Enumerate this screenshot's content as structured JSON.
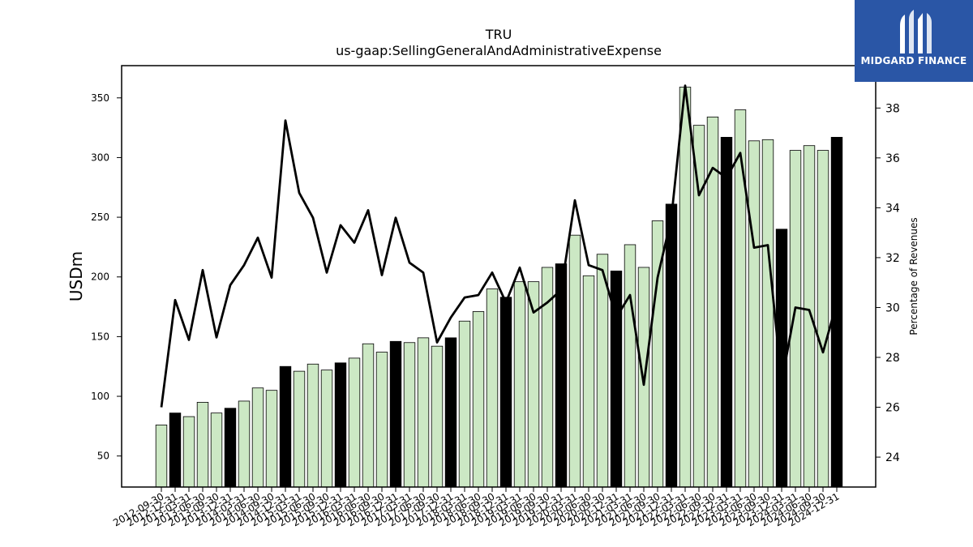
{
  "logo": {
    "name": "MIDGARD FINANCE",
    "icon": "midgard-m-logo-icon"
  },
  "chart_data": {
    "type": "bar",
    "title": "TRU",
    "subtitle": "us-gaap:SellingGeneralAndAdministrativeExpense",
    "ylabel": "USDm",
    "y2label": "Percentage of Revenues",
    "ylim": [
      24,
      377
    ],
    "y2lim": [
      22.8,
      39.7
    ],
    "yticks": [
      50,
      100,
      150,
      200,
      250,
      300,
      350
    ],
    "y2ticks": [
      24,
      26,
      28,
      30,
      32,
      34,
      36,
      38
    ],
    "colors": {
      "quarter_bar": "#cce8c4",
      "annual_bar": "#000000",
      "line": "#000000",
      "edge": "#000000"
    },
    "categories": [
      "2012-09-30",
      "2012-12-31",
      "2013-03-31",
      "2013-06-30",
      "2013-09-30",
      "2013-12-31",
      "2014-03-31",
      "2014-06-30",
      "2014-09-30",
      "2014-12-31",
      "2015-03-31",
      "2015-06-30",
      "2015-09-30",
      "2015-12-31",
      "2016-03-31",
      "2016-06-30",
      "2016-09-30",
      "2016-12-31",
      "2017-03-31",
      "2017-06-30",
      "2017-09-30",
      "2017-12-31",
      "2018-03-31",
      "2018-06-30",
      "2018-09-30",
      "2018-12-31",
      "2019-03-31",
      "2019-06-30",
      "2019-09-30",
      "2019-12-31",
      "2020-03-31",
      "2020-06-30",
      "2020-09-30",
      "2020-12-31",
      "2021-03-31",
      "2021-06-30",
      "2021-09-30",
      "2021-12-31",
      "2022-03-31",
      "2022-06-30",
      "2022-09-30",
      "2022-12-31",
      "2023-03-31",
      "2023-06-30",
      "2023-09-30",
      "2023-12-31",
      "2024-03-31",
      "2024-06-30",
      "2024-09-30",
      "2024-12-31"
    ],
    "series": [
      {
        "kind": "bar",
        "axis": "left",
        "values": [
          76,
          86,
          83,
          95,
          86,
          90,
          96,
          107,
          105,
          125,
          121,
          127,
          122,
          128,
          132,
          144,
          137,
          146,
          145,
          149,
          142,
          149,
          163,
          171,
          190,
          183,
          196,
          196,
          208,
          211,
          235,
          201,
          219,
          205,
          227,
          208,
          247,
          261,
          359,
          327,
          334,
          317,
          340,
          314,
          315,
          240,
          306,
          310,
          306,
          317
        ],
        "annual": [
          false,
          true,
          false,
          false,
          false,
          true,
          false,
          false,
          false,
          true,
          false,
          false,
          false,
          true,
          false,
          false,
          false,
          true,
          false,
          false,
          false,
          true,
          false,
          false,
          false,
          true,
          false,
          false,
          false,
          true,
          false,
          false,
          false,
          true,
          false,
          false,
          false,
          true,
          false,
          false,
          false,
          true,
          false,
          false,
          false,
          true,
          false,
          false,
          false,
          true
        ]
      },
      {
        "kind": "line",
        "axis": "right",
        "values": [
          26.0,
          30.3,
          28.7,
          31.5,
          28.8,
          30.9,
          31.7,
          32.8,
          31.2,
          37.5,
          34.6,
          33.6,
          31.4,
          33.3,
          32.6,
          33.9,
          31.3,
          33.6,
          31.8,
          31.4,
          28.6,
          29.6,
          30.4,
          30.5,
          31.4,
          30.2,
          31.6,
          29.8,
          30.2,
          30.7,
          34.3,
          31.7,
          31.5,
          29.6,
          30.5,
          26.9,
          31.2,
          33.6,
          38.9,
          34.5,
          35.6,
          35.2,
          36.2,
          32.4,
          32.5,
          27.0,
          30.0,
          29.9,
          28.2,
          30.2
        ]
      }
    ]
  }
}
